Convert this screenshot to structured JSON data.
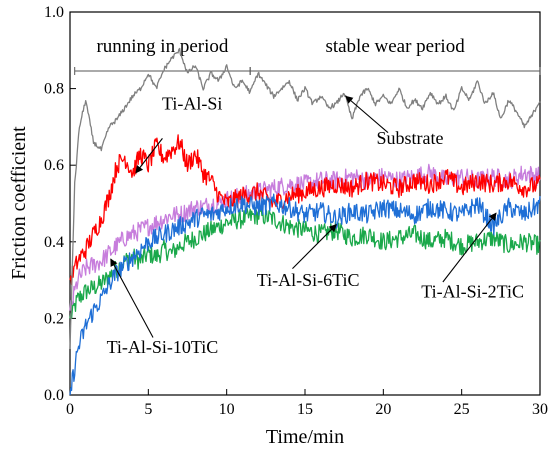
{
  "chart_data": {
    "type": "line",
    "xlabel": "Time/min",
    "ylabel": "Friction coefficient",
    "xlim": [
      0,
      30
    ],
    "ylim": [
      0,
      1.0
    ],
    "xticks": [
      0,
      5,
      10,
      15,
      20,
      25,
      30
    ],
    "yticks": [
      0.0,
      0.2,
      0.4,
      0.6,
      0.8,
      1.0
    ],
    "ytick_labels": [
      "0.0",
      "0.2",
      "0.4",
      "0.6",
      "0.8",
      "1.0"
    ],
    "grid": false,
    "periods": [
      {
        "label": "running in period",
        "start": 0.3,
        "end": 11.5
      },
      {
        "label": "stable wear period",
        "start": 11.5,
        "end": 30
      }
    ],
    "series": [
      {
        "name": "Substrate",
        "color": "#808080",
        "x": [
          0,
          0.3,
          0.6,
          1.0,
          1.5,
          2.0,
          2.5,
          3.0,
          3.5,
          4.0,
          4.5,
          5.0,
          5.5,
          6.0,
          6.5,
          7.0,
          7.5,
          8.0,
          8.5,
          9.0,
          9.5,
          10,
          10.5,
          11,
          11.5,
          12,
          12.5,
          13,
          13.5,
          14,
          14.5,
          15,
          15.5,
          16,
          16.5,
          17,
          17.5,
          18,
          18.5,
          19,
          19.5,
          20,
          20.5,
          21,
          21.5,
          22,
          22.5,
          23,
          23.5,
          24,
          24.5,
          25,
          25.5,
          26,
          26.5,
          27,
          27.5,
          28,
          28.5,
          29,
          29.5,
          30
        ],
        "y": [
          0.12,
          0.55,
          0.7,
          0.77,
          0.66,
          0.64,
          0.7,
          0.72,
          0.75,
          0.78,
          0.8,
          0.84,
          0.8,
          0.85,
          0.88,
          0.9,
          0.84,
          0.86,
          0.8,
          0.84,
          0.82,
          0.86,
          0.8,
          0.82,
          0.79,
          0.84,
          0.81,
          0.78,
          0.8,
          0.82,
          0.77,
          0.8,
          0.76,
          0.78,
          0.75,
          0.76,
          0.79,
          0.72,
          0.78,
          0.8,
          0.76,
          0.78,
          0.76,
          0.8,
          0.75,
          0.77,
          0.75,
          0.79,
          0.76,
          0.78,
          0.74,
          0.8,
          0.77,
          0.82,
          0.76,
          0.79,
          0.72,
          0.77,
          0.74,
          0.7,
          0.73,
          0.77
        ]
      },
      {
        "name": "Ti-Al-Si",
        "color": "#ff0000",
        "x": [
          0,
          0.5,
          1.0,
          1.5,
          2.0,
          2.5,
          3.0,
          3.5,
          4.0,
          4.5,
          5.0,
          5.5,
          6.0,
          6.5,
          7.0,
          7.5,
          8.0,
          8.5,
          9.0,
          9.5,
          10,
          11,
          12,
          13,
          14,
          15,
          16,
          17,
          18,
          19,
          20,
          21,
          22,
          23,
          24,
          25,
          26,
          27,
          28,
          29,
          30
        ],
        "y": [
          0.3,
          0.35,
          0.38,
          0.42,
          0.46,
          0.52,
          0.6,
          0.62,
          0.58,
          0.63,
          0.6,
          0.65,
          0.62,
          0.64,
          0.66,
          0.6,
          0.63,
          0.58,
          0.56,
          0.52,
          0.5,
          0.52,
          0.53,
          0.5,
          0.52,
          0.53,
          0.54,
          0.55,
          0.54,
          0.56,
          0.55,
          0.54,
          0.56,
          0.55,
          0.57,
          0.54,
          0.56,
          0.55,
          0.56,
          0.54,
          0.55
        ]
      },
      {
        "name": "Ti-Al-Si-2TiC",
        "color": "#1f6fd6",
        "x": [
          0,
          0.5,
          1.0,
          1.5,
          2.0,
          2.5,
          3.0,
          3.5,
          4.0,
          4.5,
          5.0,
          5.5,
          6.0,
          6.5,
          7.0,
          7.5,
          8.0,
          8.5,
          9.0,
          9.5,
          10,
          11,
          12,
          13,
          14,
          15,
          16,
          17,
          18,
          19,
          20,
          21,
          22,
          23,
          24,
          25,
          26,
          27,
          28,
          29,
          30
        ],
        "y": [
          0.0,
          0.12,
          0.18,
          0.22,
          0.25,
          0.29,
          0.32,
          0.34,
          0.36,
          0.38,
          0.4,
          0.41,
          0.42,
          0.43,
          0.44,
          0.45,
          0.46,
          0.47,
          0.47,
          0.48,
          0.49,
          0.5,
          0.49,
          0.5,
          0.49,
          0.47,
          0.48,
          0.46,
          0.48,
          0.47,
          0.49,
          0.48,
          0.47,
          0.49,
          0.48,
          0.47,
          0.5,
          0.44,
          0.49,
          0.47,
          0.5
        ]
      },
      {
        "name": "Ti-Al-Si-6TiC",
        "color": "#1aa84a",
        "x": [
          0,
          0.5,
          1.0,
          1.5,
          2.0,
          2.5,
          3.0,
          3.5,
          4.0,
          4.5,
          5.0,
          5.5,
          6.0,
          6.5,
          7.0,
          7.5,
          8.0,
          8.5,
          9.0,
          9.5,
          10,
          11,
          12,
          13,
          14,
          15,
          16,
          17,
          18,
          19,
          20,
          21,
          22,
          23,
          24,
          25,
          26,
          27,
          28,
          29,
          30
        ],
        "y": [
          0.2,
          0.25,
          0.27,
          0.28,
          0.29,
          0.31,
          0.33,
          0.35,
          0.36,
          0.35,
          0.37,
          0.36,
          0.38,
          0.37,
          0.39,
          0.4,
          0.41,
          0.42,
          0.43,
          0.44,
          0.45,
          0.46,
          0.47,
          0.46,
          0.44,
          0.43,
          0.42,
          0.43,
          0.41,
          0.42,
          0.4,
          0.41,
          0.42,
          0.4,
          0.41,
          0.39,
          0.4,
          0.41,
          0.39,
          0.4,
          0.39
        ]
      },
      {
        "name": "Ti-Al-Si-10TiC",
        "color": "#c77ddc",
        "x": [
          0,
          0.5,
          1.0,
          1.5,
          2.0,
          2.5,
          3.0,
          3.5,
          4.0,
          4.5,
          5.0,
          5.5,
          6.0,
          6.5,
          7.0,
          7.5,
          8.0,
          8.5,
          9.0,
          9.5,
          10,
          11,
          12,
          13,
          14,
          15,
          16,
          17,
          18,
          19,
          20,
          21,
          22,
          23,
          24,
          25,
          26,
          27,
          28,
          29,
          30
        ],
        "y": [
          0.22,
          0.3,
          0.33,
          0.34,
          0.35,
          0.37,
          0.39,
          0.41,
          0.42,
          0.43,
          0.44,
          0.45,
          0.46,
          0.47,
          0.47,
          0.48,
          0.49,
          0.49,
          0.5,
          0.5,
          0.51,
          0.52,
          0.53,
          0.54,
          0.55,
          0.55,
          0.56,
          0.56,
          0.57,
          0.56,
          0.57,
          0.56,
          0.57,
          0.58,
          0.56,
          0.57,
          0.56,
          0.57,
          0.56,
          0.58,
          0.57
        ]
      }
    ],
    "annotations": [
      {
        "text": "Ti-Al-Si",
        "series": "Ti-Al-Si",
        "label_x": 7.8,
        "label_y": 0.745,
        "arrow_from": [
          5.9,
          0.67
        ],
        "arrow_to": [
          4.2,
          0.58
        ]
      },
      {
        "text": "Substrate",
        "series": "Substrate",
        "label_x": 21.7,
        "label_y": 0.655,
        "arrow_from": [
          20.3,
          0.685
        ],
        "arrow_to": [
          17.6,
          0.78
        ]
      },
      {
        "text": "Ti-Al-Si-6TiC",
        "series": "Ti-Al-Si-6TiC",
        "label_x": 15.2,
        "label_y": 0.285,
        "arrow_from": [
          14.2,
          0.33
        ],
        "arrow_to": [
          17.0,
          0.445
        ]
      },
      {
        "text": "Ti-Al-Si-2TiC",
        "series": "Ti-Al-Si-2TiC",
        "label_x": 25.7,
        "label_y": 0.255,
        "arrow_from": [
          23.8,
          0.295
        ],
        "arrow_to": [
          27.2,
          0.475
        ]
      },
      {
        "text": "Ti-Al-Si-10TiC",
        "series": "Ti-Al-Si-10TiC",
        "label_x": 5.9,
        "label_y": 0.11,
        "arrow_from": [
          5.3,
          0.15
        ],
        "arrow_to": [
          2.6,
          0.355
        ]
      }
    ]
  }
}
